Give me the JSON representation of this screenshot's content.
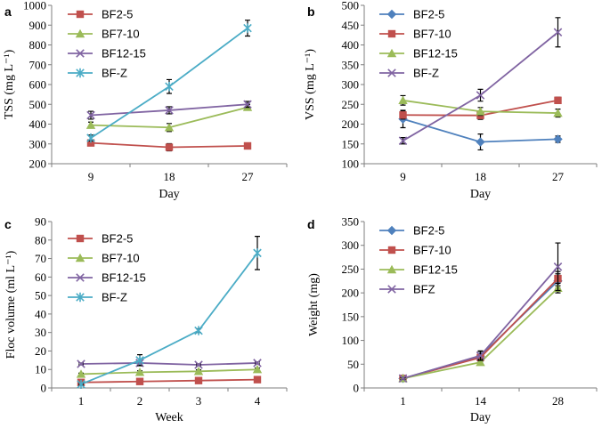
{
  "chart_data": [
    {
      "type": "line",
      "panel_label": "a",
      "categories": [
        "9",
        "18",
        "27"
      ],
      "xlabel": "Day",
      "ylabel": "TSS (mg L⁻¹)",
      "ylim": [
        200,
        1000
      ],
      "yticks": [
        "200",
        "300",
        "400",
        "500",
        "600",
        "700",
        "800",
        "900",
        "1000"
      ],
      "legend_position": "top-left",
      "series": [
        {
          "name": "BF2-5",
          "color": "#c0504d",
          "marker": "square",
          "values": [
            305,
            283,
            290
          ],
          "errors": [
            10,
            18,
            12
          ]
        },
        {
          "name": "BF7-10",
          "color": "#9bbb59",
          "marker": "triangle",
          "values": [
            395,
            383,
            485
          ],
          "errors": [
            15,
            20,
            15
          ]
        },
        {
          "name": "BF12-15",
          "color": "#8064a2",
          "marker": "x",
          "values": [
            445,
            470,
            500
          ],
          "errors": [
            20,
            18,
            15
          ]
        },
        {
          "name": "BF-Z",
          "color": "#4bacc6",
          "marker": "star",
          "values": [
            330,
            590,
            885
          ],
          "errors": [
            15,
            35,
            40
          ]
        }
      ]
    },
    {
      "type": "line",
      "panel_label": "b",
      "categories": [
        "9",
        "18",
        "27"
      ],
      "xlabel": "Day",
      "ylabel": "VSS (mg L⁻¹)",
      "ylim": [
        100,
        500
      ],
      "yticks": [
        "100",
        "150",
        "200",
        "250",
        "300",
        "350",
        "400",
        "450",
        "500"
      ],
      "legend_position": "top-left",
      "series": [
        {
          "name": "BF2-5",
          "color": "#4f81bd",
          "marker": "diamond",
          "values": [
            213,
            155,
            162
          ],
          "errors": [
            22,
            20,
            8
          ]
        },
        {
          "name": "BF7-10",
          "color": "#c0504d",
          "marker": "square",
          "values": [
            223,
            222,
            260
          ],
          "errors": [
            10,
            10,
            8
          ]
        },
        {
          "name": "BF12-15",
          "color": "#9bbb59",
          "marker": "triangle",
          "values": [
            260,
            232,
            228
          ],
          "errors": [
            12,
            10,
            10
          ]
        },
        {
          "name": "BF-Z",
          "color": "#8064a2",
          "marker": "x",
          "values": [
            158,
            273,
            432
          ],
          "errors": [
            8,
            15,
            37
          ]
        }
      ]
    },
    {
      "type": "line",
      "panel_label": "c",
      "categories": [
        "1",
        "2",
        "3",
        "4"
      ],
      "xlabel": "Week",
      "ylabel": "Floc volume (ml L⁻¹)",
      "ylim": [
        0,
        90
      ],
      "yticks": [
        "0",
        "10",
        "20",
        "30",
        "40",
        "50",
        "60",
        "70",
        "80",
        "90"
      ],
      "legend_position": "top-left",
      "series": [
        {
          "name": "BF2-5",
          "color": "#c0504d",
          "marker": "square",
          "values": [
            3,
            3.5,
            4,
            4.5
          ],
          "errors": [
            0.5,
            0.5,
            0.5,
            0.5
          ]
        },
        {
          "name": "BF7-10",
          "color": "#9bbb59",
          "marker": "triangle",
          "values": [
            7.5,
            8.5,
            9,
            10
          ],
          "errors": [
            0.5,
            0.8,
            0.8,
            0.8
          ]
        },
        {
          "name": "BF12-15",
          "color": "#8064a2",
          "marker": "x",
          "values": [
            13,
            13.5,
            12.5,
            13.5
          ],
          "errors": [
            0.5,
            1,
            0.5,
            0.5
          ]
        },
        {
          "name": "BF-Z",
          "color": "#4bacc6",
          "marker": "star",
          "values": [
            2,
            15,
            31,
            73
          ],
          "errors": [
            0.5,
            3,
            1,
            9
          ]
        }
      ]
    },
    {
      "type": "line",
      "panel_label": "d",
      "categories": [
        "1",
        "14",
        "28"
      ],
      "xlabel": "Day",
      "ylabel": "Weight (mg)",
      "ylim": [
        0,
        350
      ],
      "yticks": [
        "0",
        "50",
        "100",
        "150",
        "200",
        "250",
        "300",
        "350"
      ],
      "legend_position": "top-left",
      "series": [
        {
          "name": "BF2-5",
          "color": "#4f81bd",
          "marker": "diamond",
          "values": [
            20,
            67,
            225
          ],
          "errors": [
            2,
            10,
            15
          ]
        },
        {
          "name": "BF7-10",
          "color": "#c0504d",
          "marker": "square",
          "values": [
            20,
            64,
            230
          ],
          "errors": [
            2,
            8,
            15
          ]
        },
        {
          "name": "BF12-15",
          "color": "#9bbb59",
          "marker": "triangle",
          "values": [
            20,
            54,
            210
          ],
          "errors": [
            2,
            6,
            10
          ]
        },
        {
          "name": "BFZ",
          "color": "#8064a2",
          "marker": "x",
          "values": [
            20,
            68,
            255
          ],
          "errors": [
            2,
            10,
            50
          ]
        }
      ]
    }
  ]
}
